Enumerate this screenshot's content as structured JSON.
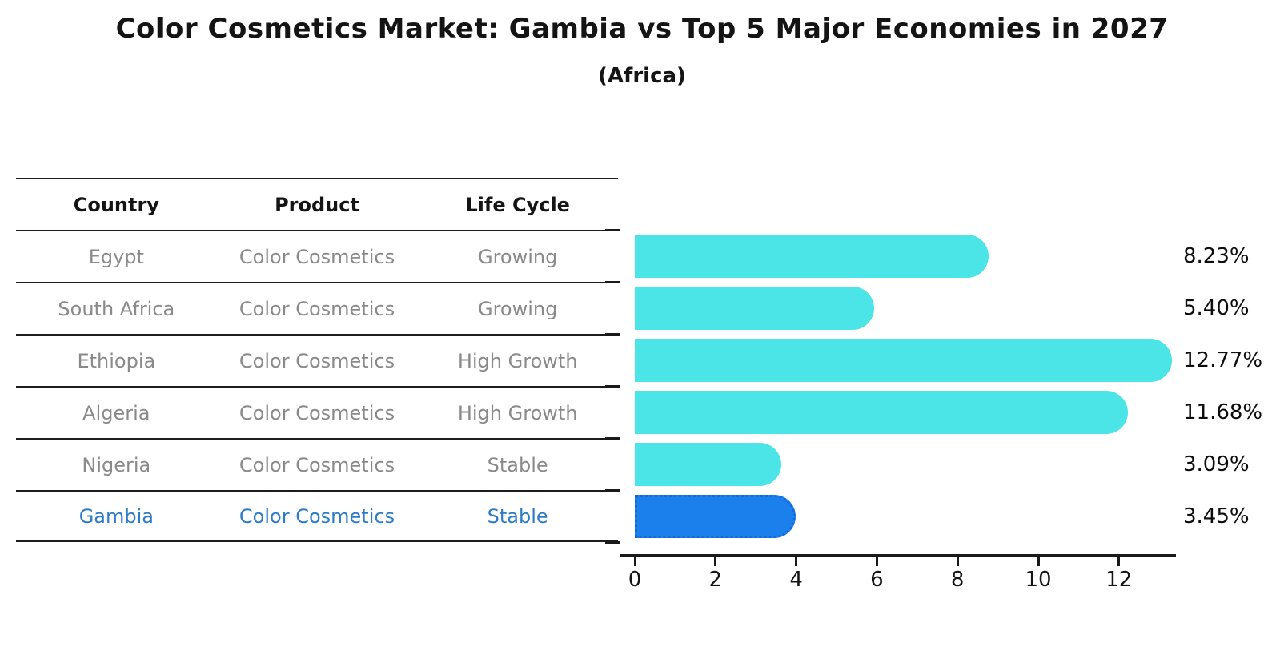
{
  "title": "Color Cosmetics Market: Gambia vs Top 5 Major Economies in 2027",
  "subtitle": "(Africa)",
  "colors": {
    "bar_default": "#4be4e7",
    "bar_highlight": "#1b80ec",
    "bar_highlight_border": "#1568d8",
    "highlight_text": "#2e7bc8",
    "table_text": "#8a8a8a",
    "axis_text": "#141414"
  },
  "table": {
    "headers": [
      "Country",
      "Product",
      "Life Cycle"
    ],
    "rows": [
      {
        "country": "Egypt",
        "product": "Color Cosmetics",
        "life_cycle": "Growing",
        "highlight": false
      },
      {
        "country": "South Africa",
        "product": "Color Cosmetics",
        "life_cycle": "Growing",
        "highlight": false
      },
      {
        "country": "Ethiopia",
        "product": "Color Cosmetics",
        "life_cycle": "High Growth",
        "highlight": false
      },
      {
        "country": "Algeria",
        "product": "Color Cosmetics",
        "life_cycle": "High Growth",
        "highlight": false
      },
      {
        "country": "Nigeria",
        "product": "Color Cosmetics",
        "life_cycle": "Stable",
        "highlight": false
      },
      {
        "country": "Gambia",
        "product": "Color Cosmetics",
        "life_cycle": "Stable",
        "highlight": true
      }
    ]
  },
  "chart_data": {
    "type": "bar",
    "orientation": "horizontal",
    "title": "Color Cosmetics Market: Gambia vs Top 5 Major Economies in 2027",
    "subtitle": "(Africa)",
    "categories": [
      "Egypt",
      "South Africa",
      "Ethiopia",
      "Algeria",
      "Nigeria",
      "Gambia"
    ],
    "values": [
      8.23,
      5.4,
      12.77,
      11.68,
      3.09,
      3.45
    ],
    "value_labels": [
      "8.23%",
      "5.40%",
      "12.77%",
      "11.68%",
      "3.09%",
      "3.45%"
    ],
    "highlight_index": 5,
    "xlabel": "",
    "ylabel": "",
    "xlim": [
      0,
      13.4
    ],
    "xticks": [
      0,
      2,
      4,
      6,
      8,
      10,
      12
    ],
    "grid": false,
    "legend": false
  }
}
